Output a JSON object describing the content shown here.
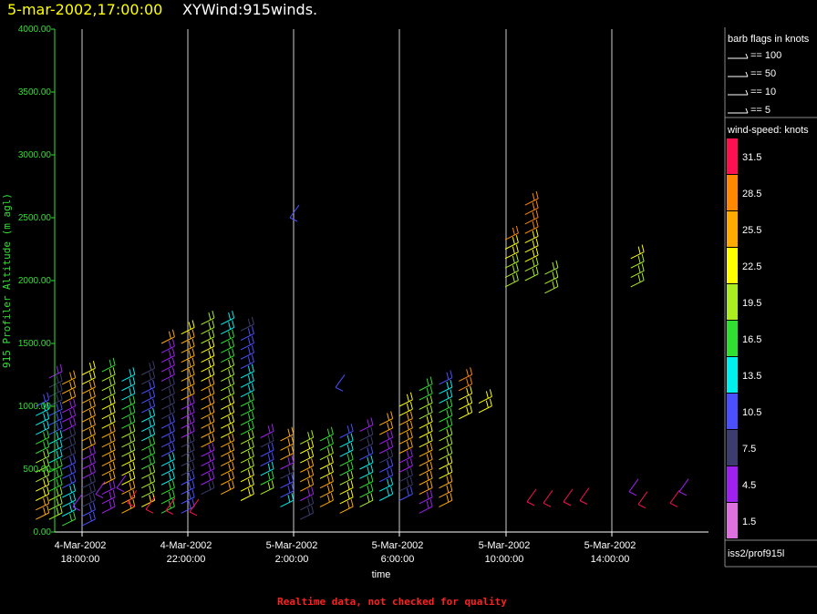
{
  "header": {
    "date_time": "5-mar-2002,17:00:00",
    "plot_name": "XYWind:915winds."
  },
  "footer_note": "Realtime data, not checked for quality",
  "legend": {
    "barb_title": "barb flags in knots",
    "barb_items": [
      "== 100",
      "== 50",
      "== 10",
      "== 5"
    ],
    "speed_title": "wind-speed: knots",
    "speed_levels": [
      "31.5",
      "28.5",
      "25.5",
      "22.5",
      "19.5",
      "16.5",
      "13.5",
      "10.5",
      "7.5",
      "4.5",
      "1.5"
    ],
    "speed_colors": [
      "#ff1050",
      "#ff8800",
      "#ffaa00",
      "#ffff00",
      "#aaee20",
      "#30e030",
      "#00f0f0",
      "#4a50ff",
      "#3c3c6e",
      "#a020f0",
      "#e070e0"
    ],
    "source": "iss2/prof915l"
  },
  "chart_data": {
    "type": "scatter",
    "title": "5-mar-2002,17:00:00 XYWind:915winds.",
    "xlabel": "time",
    "ylabel": "915 Profiler Altitude (m agl)",
    "x_start": "4-Mar-2002 15:40",
    "x_end": "5-Mar-2002 17:00",
    "x_tick_labels": [
      [
        "4-Mar-2002",
        "18:00:00"
      ],
      [
        "4-Mar-2002",
        "22:00:00"
      ],
      [
        "5-Mar-2002",
        "2:00:00"
      ],
      [
        "5-Mar-2002",
        "6:00:00"
      ],
      [
        "5-Mar-2002",
        "10:00:00"
      ],
      [
        "5-Mar-2002",
        "14:00:00"
      ]
    ],
    "y_tick_labels": [
      "0.00",
      "500.00",
      "1000.00",
      "1500.00",
      "2000.00",
      "2500.00",
      "3000.00",
      "3500.00",
      "4000.00"
    ],
    "ylim": [
      0,
      4000
    ],
    "grid": "vertical lines at time ticks",
    "speed_unit": "knots",
    "profiles": [
      {
        "t": "4-Mar 16:15",
        "z0": 100,
        "z1": 1050,
        "spd": "mixed"
      },
      {
        "t": "4-Mar 16:45",
        "z0": 100,
        "z1": 1250,
        "spd": "mixed"
      },
      {
        "t": "4-Mar 17:15",
        "z0": 50,
        "z1": 1200,
        "spd": "mixed"
      },
      {
        "t": "4-Mar 18:00",
        "z0": 50,
        "z1": 1300,
        "spd": "mixed"
      },
      {
        "t": "4-Mar 18:45",
        "z0": 150,
        "z1": 1300,
        "spd": "mixed"
      },
      {
        "t": "4-Mar 19:30",
        "z0": 150,
        "z1": 1250,
        "spd": "mixed"
      },
      {
        "t": "4-Mar 20:15",
        "z0": 200,
        "z1": 1280,
        "spd": "mixed"
      },
      {
        "t": "4-Mar 21:00",
        "z0": 150,
        "z1": 1550,
        "spd": "mixed"
      },
      {
        "t": "4-Mar 21:45",
        "z0": 150,
        "z1": 1600,
        "spd": "mixed"
      },
      {
        "t": "4-Mar 22:30",
        "z0": 300,
        "z1": 1650,
        "spd": "mixed"
      },
      {
        "t": "4-Mar 23:15",
        "z0": 300,
        "z1": 1700,
        "spd": "mixed"
      },
      {
        "t": "5-Mar 00:00",
        "z0": 250,
        "z1": 1600,
        "spd": "mixed"
      },
      {
        "t": "5-Mar 00:45",
        "z0": 300,
        "z1": 800,
        "spd": "mixed"
      },
      {
        "t": "5-Mar 01:30",
        "z0": 200,
        "z1": 750,
        "spd": "mixed"
      },
      {
        "t": "5-Mar 02:15",
        "z0": 100,
        "z1": 700,
        "spd": "mixed"
      },
      {
        "t": "5-Mar 03:00",
        "z0": 200,
        "z1": 750,
        "spd": "mixed"
      },
      {
        "t": "5-Mar 03:45",
        "z0": 150,
        "z1": 800,
        "spd": "mixed"
      },
      {
        "t": "5-Mar 04:30",
        "z0": 200,
        "z1": 800,
        "spd": "mixed"
      },
      {
        "t": "5-Mar 05:15",
        "z0": 250,
        "z1": 850,
        "spd": "mixed"
      },
      {
        "t": "5-Mar 06:00",
        "z0": 250,
        "z1": 1000,
        "spd": "mixed"
      },
      {
        "t": "5-Mar 06:45",
        "z0": 150,
        "z1": 1150,
        "spd": "mixed"
      },
      {
        "t": "5-Mar 07:30",
        "z0": 200,
        "z1": 1200,
        "spd": "mixed"
      },
      {
        "t": "5-Mar 08:15",
        "z0": 900,
        "z1": 1250,
        "spd": "mixed"
      },
      {
        "t": "5-Mar 09:00",
        "z0": 950,
        "z1": 1050,
        "spd": "mixed"
      },
      {
        "t": "5-Mar 10:00",
        "z0": 1950,
        "z1": 2350,
        "spd": "mixed"
      },
      {
        "t": "5-Mar 10:45",
        "z0": 2000,
        "z1": 2600,
        "spd": "mixed"
      },
      {
        "t": "5-Mar 11:30",
        "z0": 1900,
        "z1": 2050,
        "spd": "mixed"
      },
      {
        "t": "5-Mar 14:45",
        "z0": 1950,
        "z1": 2200,
        "spd": "mixed"
      }
    ]
  }
}
